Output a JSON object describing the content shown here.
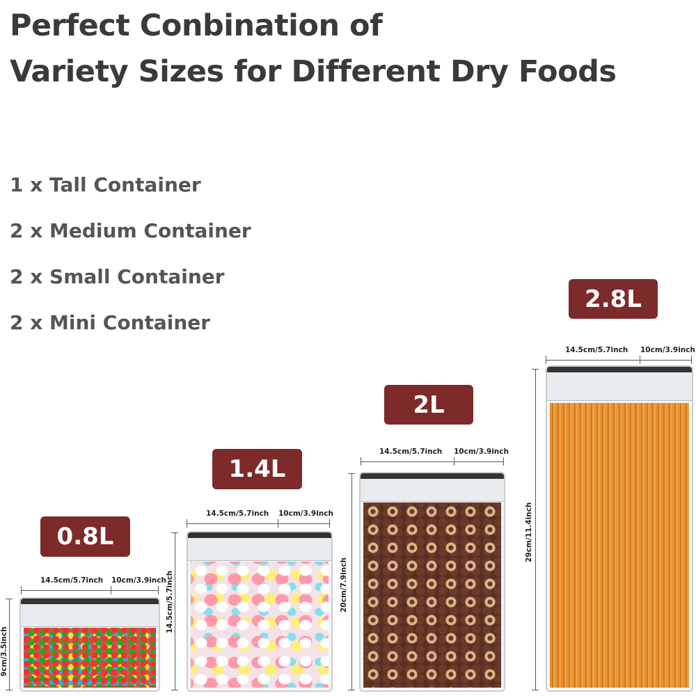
{
  "title": {
    "line1": "Perfect Conbination of",
    "line2": "Variety Sizes for Different Dry Foods"
  },
  "contents": [
    "1 x Tall Container",
    "2 x Medium Container",
    "2 x Small Container",
    "2 x Mini Container"
  ],
  "badge_color": "#7c2a2a",
  "containers": [
    {
      "capacity": "0.8L",
      "width": "14.5cm/5.7inch",
      "depth": "10cm/3.9inch",
      "height": "9cm/3.5inch",
      "contents": "candy"
    },
    {
      "capacity": "1.4L",
      "width": "14.5cm/5.7inch",
      "depth": "10cm/3.9inch",
      "height": "14.5cm/5.7inch",
      "contents": "marshmallows"
    },
    {
      "capacity": "2L",
      "width": "14.5cm/5.7inch",
      "depth": "10cm/3.9inch",
      "height": "20cm/7.9inch",
      "contents": "cereal"
    },
    {
      "capacity": "2.8L",
      "width": "14.5cm/5.7inch",
      "depth": "10cm/3.9inch",
      "height": "29cm/11.4inch",
      "contents": "spaghetti"
    }
  ]
}
